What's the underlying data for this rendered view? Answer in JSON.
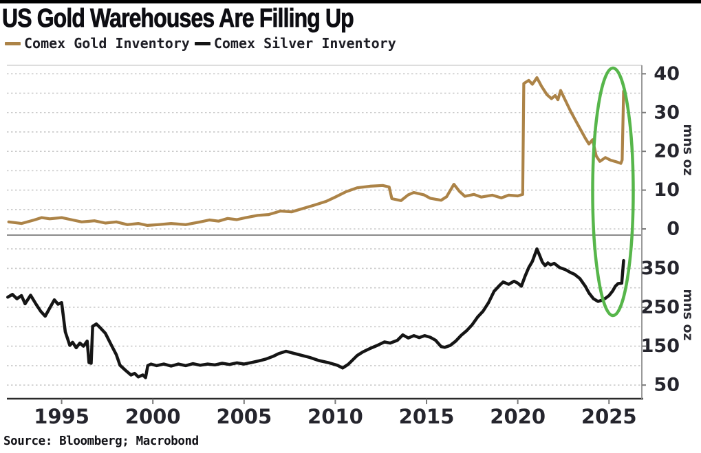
{
  "title": "US Gold Warehouses Are Filling Up",
  "source": "Source: Bloomberg; Macrobond",
  "colors": {
    "gold_line": "#ac8347",
    "silver_line": "#151515",
    "annotation_green": "#57b64b",
    "grid": "#c9c9c9",
    "axis_dark": "#2a2a2a",
    "axis_gray": "#9a9a9a",
    "tick_label": "#25252d"
  },
  "legend": [
    {
      "label": "Comex Gold Inventory",
      "color": "#ac8347"
    },
    {
      "label": "Comex Silver Inventory",
      "color": "#151515"
    }
  ],
  "annotation": {
    "shape": "ellipse",
    "color": "#57b64b",
    "highlights": "early-2025 inventory spike in both panels"
  },
  "x_axis": {
    "range": [
      1992.0,
      2026.8
    ],
    "ticks": [
      "1995",
      "2000",
      "2005",
      "2010",
      "2015",
      "2020",
      "2025"
    ],
    "tick_years": [
      1995,
      2000,
      2005,
      2010,
      2015,
      2020,
      2025
    ]
  },
  "chart_data": [
    {
      "type": "line",
      "panel": "top",
      "name": "Comex Gold Inventory",
      "unit_label": "mns oz",
      "color": "#ac8347",
      "ylim": [
        0,
        42.1
      ],
      "yticks": [
        0,
        10,
        20,
        30,
        40
      ],
      "grid_step": 5,
      "points": [
        [
          1992.1,
          1.8
        ],
        [
          1992.8,
          1.4
        ],
        [
          1993.5,
          2.3
        ],
        [
          1993.9,
          2.9
        ],
        [
          1994.35,
          2.6
        ],
        [
          1995.0,
          2.9
        ],
        [
          1995.6,
          2.3
        ],
        [
          1996.1,
          1.8
        ],
        [
          1996.8,
          2.1
        ],
        [
          1997.4,
          1.5
        ],
        [
          1998.0,
          1.8
        ],
        [
          1998.6,
          1.1
        ],
        [
          1999.2,
          1.4
        ],
        [
          1999.7,
          0.9
        ],
        [
          2000.3,
          1.1
        ],
        [
          2001.0,
          1.4
        ],
        [
          2001.8,
          1.1
        ],
        [
          2002.6,
          1.8
        ],
        [
          2003.1,
          2.3
        ],
        [
          2003.6,
          2.0
        ],
        [
          2004.1,
          2.7
        ],
        [
          2004.6,
          2.4
        ],
        [
          2005.1,
          2.9
        ],
        [
          2005.75,
          3.5
        ],
        [
          2006.35,
          3.7
        ],
        [
          2007.0,
          4.6
        ],
        [
          2007.6,
          4.4
        ],
        [
          2008.25,
          5.3
        ],
        [
          2008.9,
          6.2
        ],
        [
          2009.5,
          7.1
        ],
        [
          2010.0,
          8.2
        ],
        [
          2010.6,
          9.6
        ],
        [
          2011.2,
          10.6
        ],
        [
          2011.9,
          11.0
        ],
        [
          2012.6,
          11.2
        ],
        [
          2012.95,
          10.8
        ],
        [
          2013.1,
          7.8
        ],
        [
          2013.6,
          7.3
        ],
        [
          2014.0,
          8.8
        ],
        [
          2014.3,
          9.4
        ],
        [
          2014.85,
          8.8
        ],
        [
          2015.2,
          7.9
        ],
        [
          2015.8,
          7.4
        ],
        [
          2016.1,
          8.3
        ],
        [
          2016.5,
          11.5
        ],
        [
          2016.8,
          9.7
        ],
        [
          2017.1,
          8.4
        ],
        [
          2017.6,
          8.9
        ],
        [
          2018.0,
          8.2
        ],
        [
          2018.6,
          8.7
        ],
        [
          2019.1,
          8.0
        ],
        [
          2019.5,
          8.7
        ],
        [
          2020.0,
          8.5
        ],
        [
          2020.27,
          8.9
        ],
        [
          2020.33,
          37.5
        ],
        [
          2020.6,
          38.3
        ],
        [
          2020.8,
          37.3
        ],
        [
          2021.05,
          39.0
        ],
        [
          2021.3,
          36.8
        ],
        [
          2021.6,
          34.6
        ],
        [
          2021.85,
          33.6
        ],
        [
          2022.05,
          34.4
        ],
        [
          2022.2,
          33.3
        ],
        [
          2022.35,
          35.7
        ],
        [
          2022.5,
          34.2
        ],
        [
          2022.9,
          30.3
        ],
        [
          2023.3,
          26.8
        ],
        [
          2023.7,
          23.4
        ],
        [
          2023.9,
          21.9
        ],
        [
          2024.1,
          23.0
        ],
        [
          2024.3,
          18.8
        ],
        [
          2024.5,
          17.4
        ],
        [
          2024.8,
          18.4
        ],
        [
          2025.1,
          17.7
        ],
        [
          2025.4,
          17.3
        ],
        [
          2025.65,
          16.9
        ],
        [
          2025.72,
          17.8
        ],
        [
          2025.8,
          35.5
        ]
      ]
    },
    {
      "type": "line",
      "panel": "bottom",
      "name": "Comex Silver Inventory",
      "unit_label": "mns oz",
      "color": "#151515",
      "ylim": [
        15,
        432
      ],
      "yticks": [
        50,
        150,
        250,
        350
      ],
      "grid_step": 50,
      "points": [
        [
          1992.05,
          276
        ],
        [
          1992.3,
          283
        ],
        [
          1992.55,
          272
        ],
        [
          1992.8,
          280
        ],
        [
          1993.0,
          259
        ],
        [
          1993.3,
          281
        ],
        [
          1993.6,
          258
        ],
        [
          1993.85,
          240
        ],
        [
          1994.1,
          227
        ],
        [
          1994.35,
          248
        ],
        [
          1994.6,
          269
        ],
        [
          1994.8,
          258
        ],
        [
          1995.0,
          262
        ],
        [
          1995.2,
          187
        ],
        [
          1995.45,
          152
        ],
        [
          1995.6,
          160
        ],
        [
          1995.8,
          146
        ],
        [
          1996.0,
          158
        ],
        [
          1996.2,
          150
        ],
        [
          1996.4,
          163
        ],
        [
          1996.5,
          108
        ],
        [
          1996.62,
          106
        ],
        [
          1996.7,
          201
        ],
        [
          1996.9,
          207
        ],
        [
          1997.1,
          198
        ],
        [
          1997.4,
          183
        ],
        [
          1997.7,
          155
        ],
        [
          1998.0,
          128
        ],
        [
          1998.2,
          101
        ],
        [
          1998.5,
          88
        ],
        [
          1998.8,
          76
        ],
        [
          1999.0,
          80
        ],
        [
          1999.2,
          71
        ],
        [
          1999.45,
          76
        ],
        [
          1999.6,
          69
        ],
        [
          1999.72,
          100
        ],
        [
          1999.9,
          104
        ],
        [
          2000.2,
          100
        ],
        [
          2000.6,
          104
        ],
        [
          2001.0,
          99
        ],
        [
          2001.4,
          104
        ],
        [
          2001.8,
          100
        ],
        [
          2002.2,
          105
        ],
        [
          2002.6,
          101
        ],
        [
          2003.0,
          104
        ],
        [
          2003.4,
          102
        ],
        [
          2003.8,
          106
        ],
        [
          2004.2,
          103
        ],
        [
          2004.6,
          107
        ],
        [
          2005.0,
          104
        ],
        [
          2005.4,
          108
        ],
        [
          2005.8,
          112
        ],
        [
          2006.2,
          117
        ],
        [
          2006.6,
          124
        ],
        [
          2006.9,
          131
        ],
        [
          2007.3,
          137
        ],
        [
          2007.7,
          132
        ],
        [
          2008.1,
          127
        ],
        [
          2008.6,
          121
        ],
        [
          2009.1,
          113
        ],
        [
          2009.6,
          108
        ],
        [
          2010.1,
          101
        ],
        [
          2010.4,
          94
        ],
        [
          2010.7,
          103
        ],
        [
          2011.2,
          126
        ],
        [
          2011.5,
          135
        ],
        [
          2011.9,
          144
        ],
        [
          2012.3,
          152
        ],
        [
          2012.7,
          161
        ],
        [
          2013.0,
          158
        ],
        [
          2013.4,
          165
        ],
        [
          2013.7,
          179
        ],
        [
          2014.0,
          171
        ],
        [
          2014.3,
          177
        ],
        [
          2014.6,
          172
        ],
        [
          2014.9,
          177
        ],
        [
          2015.2,
          173
        ],
        [
          2015.5,
          165
        ],
        [
          2015.8,
          149
        ],
        [
          2016.0,
          147
        ],
        [
          2016.3,
          152
        ],
        [
          2016.6,
          163
        ],
        [
          2016.9,
          178
        ],
        [
          2017.2,
          190
        ],
        [
          2017.5,
          205
        ],
        [
          2017.8,
          225
        ],
        [
          2018.1,
          240
        ],
        [
          2018.4,
          262
        ],
        [
          2018.7,
          291
        ],
        [
          2019.0,
          306
        ],
        [
          2019.2,
          315
        ],
        [
          2019.5,
          309
        ],
        [
          2019.8,
          317
        ],
        [
          2020.0,
          312
        ],
        [
          2020.2,
          304
        ],
        [
          2020.4,
          330
        ],
        [
          2020.6,
          352
        ],
        [
          2020.8,
          368
        ],
        [
          2021.05,
          400
        ],
        [
          2021.2,
          383
        ],
        [
          2021.35,
          366
        ],
        [
          2021.5,
          357
        ],
        [
          2021.65,
          364
        ],
        [
          2021.8,
          359
        ],
        [
          2022.0,
          363
        ],
        [
          2022.3,
          352
        ],
        [
          2022.6,
          347
        ],
        [
          2022.9,
          339
        ],
        [
          2023.1,
          335
        ],
        [
          2023.4,
          324
        ],
        [
          2023.7,
          304
        ],
        [
          2023.9,
          287
        ],
        [
          2024.15,
          272
        ],
        [
          2024.4,
          265
        ],
        [
          2024.6,
          268
        ],
        [
          2024.8,
          273
        ],
        [
          2025.0,
          280
        ],
        [
          2025.2,
          292
        ],
        [
          2025.35,
          304
        ],
        [
          2025.5,
          311
        ],
        [
          2025.7,
          312
        ],
        [
          2025.8,
          370
        ]
      ]
    }
  ]
}
